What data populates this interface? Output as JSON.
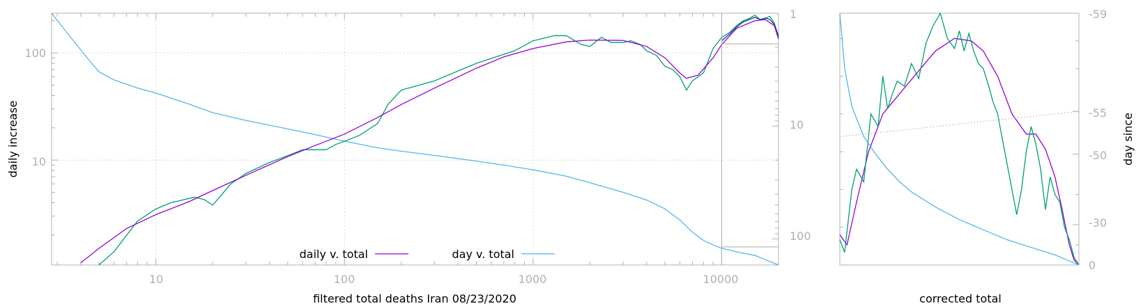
{
  "chart_data": [
    {
      "type": "line",
      "xscale": "log",
      "yscale": "log",
      "xlim": [
        2.8,
        20000
      ],
      "ylim": [
        1.05,
        235
      ],
      "y2lim": [
        1,
        170
      ],
      "y2_reversed": true,
      "grid": true,
      "xlabel": "filtered total deaths Iran 08/23/2020",
      "ylabel": "daily increase",
      "y2label": "",
      "x_ticks": [
        "10",
        "100",
        "1000",
        "10000"
      ],
      "y_ticks": [
        "100",
        "10"
      ],
      "y2_ticks": [
        "1",
        "10",
        "100"
      ],
      "legend_position": "bottom-center",
      "legend": [
        "daily v. total",
        "day v. total"
      ],
      "colors": {
        "daily_fit": "#9400d3",
        "daily_raw": "#009e73",
        "day": "#56b4e9",
        "inset": "#1f3c88",
        "frame": "#b0b0b0"
      },
      "series": [
        {
          "name": "daily v. total",
          "axis": "left",
          "x": [
            4,
            5,
            7,
            10,
            15,
            20,
            30,
            50,
            70,
            100,
            150,
            200,
            300,
            500,
            700,
            1000,
            1500,
            2000,
            3000,
            4000,
            5000,
            6000,
            6500,
            7500,
            9000,
            10000,
            12000,
            15000,
            17000,
            19000,
            20000
          ],
          "y": [
            1.1,
            1.5,
            2.3,
            3.1,
            4.1,
            5.2,
            7.2,
            10.8,
            13.7,
            17.5,
            25,
            33,
            47,
            72,
            92,
            110,
            127,
            132,
            131,
            115,
            90,
            65,
            58,
            62,
            90,
            120,
            170,
            200,
            205,
            180,
            135
          ]
        },
        {
          "name": "",
          "axis": "left",
          "x": [
            5,
            6,
            8,
            10,
            12,
            16,
            18,
            20,
            25,
            30,
            40,
            50,
            60,
            70,
            80,
            90,
            100,
            120,
            150,
            170,
            200,
            300,
            500,
            800,
            1000,
            1300,
            1500,
            1800,
            2000,
            2300,
            2600,
            3000,
            3300,
            3700,
            4000,
            4500,
            5000,
            5500,
            6000,
            6500,
            7000,
            7500,
            8000,
            9000,
            10000,
            11000,
            12000,
            13000,
            14000,
            15000,
            16000,
            17000,
            18000,
            19000,
            20000
          ],
          "y": [
            1.05,
            1.4,
            2.7,
            3.5,
            4.0,
            4.5,
            4.3,
            3.8,
            6.0,
            7.5,
            9.5,
            11,
            12.5,
            12.5,
            12.5,
            14,
            15,
            17,
            22,
            33,
            45,
            55,
            80,
            105,
            130,
            145,
            145,
            120,
            115,
            140,
            125,
            125,
            130,
            120,
            105,
            95,
            75,
            70,
            60,
            45,
            55,
            60,
            65,
            110,
            140,
            155,
            180,
            200,
            210,
            225,
            205,
            210,
            220,
            190,
            140
          ]
        },
        {
          "name": "day v. total",
          "axis": "right",
          "x": [
            2.8,
            3.5,
            4.5,
            5,
            6,
            8,
            10,
            15,
            20,
            30,
            50,
            70,
            100,
            150,
            200,
            300,
            500,
            700,
            1000,
            1500,
            2000,
            3000,
            4000,
            5000,
            6000,
            7000,
            8000,
            9000,
            10000,
            12000,
            15000,
            20000
          ],
          "y": [
            1,
            1.6,
            2.7,
            3.3,
            3.9,
            4.6,
            5.1,
            6.4,
            7.6,
            8.9,
            10.6,
            11.9,
            13.6,
            15.6,
            16.7,
            18.2,
            20.4,
            22.2,
            24.4,
            27.8,
            31.8,
            38.6,
            45.2,
            54.1,
            68,
            87,
            103,
            113,
            121,
            130,
            140,
            170
          ]
        }
      ],
      "inset": {
        "x": [
          10000,
          11000,
          12000,
          13000,
          14000,
          15000,
          16000,
          17000,
          18000,
          19000,
          20000
        ],
        "y": [
          130,
          150,
          175,
          195,
          205,
          215,
          205,
          212,
          205,
          185,
          145
        ]
      }
    },
    {
      "type": "line",
      "xlabel": "corrected total",
      "y2label": "day since",
      "y2_ticks": [
        "-59",
        "-55",
        "-50",
        "-30",
        "0"
      ],
      "series": [
        {
          "name": "",
          "x": [
            0,
            0.03,
            0.07,
            0.12,
            0.18,
            0.25,
            0.32,
            0.4,
            0.48,
            0.55,
            0.6,
            0.66,
            0.72,
            0.78,
            0.82,
            0.86,
            0.9,
            0.93,
            0.96,
            0.98,
            1.0
          ],
          "y": [
            0.12,
            0.08,
            0.25,
            0.45,
            0.6,
            0.68,
            0.76,
            0.85,
            0.9,
            0.89,
            0.85,
            0.75,
            0.6,
            0.52,
            0.52,
            0.46,
            0.35,
            0.22,
            0.08,
            0.02,
            0.0
          ]
        },
        {
          "name": "",
          "x": [
            0,
            0.02,
            0.05,
            0.07,
            0.1,
            0.13,
            0.16,
            0.18,
            0.2,
            0.22,
            0.24,
            0.27,
            0.3,
            0.33,
            0.36,
            0.39,
            0.42,
            0.45,
            0.48,
            0.5,
            0.52,
            0.54,
            0.56,
            0.58,
            0.6,
            0.62,
            0.64,
            0.66,
            0.68,
            0.7,
            0.72,
            0.74,
            0.76,
            0.78,
            0.8,
            0.82,
            0.84,
            0.86,
            0.88,
            0.9,
            0.92,
            0.94,
            0.96,
            0.98,
            1.0
          ],
          "y": [
            0.1,
            0.05,
            0.3,
            0.38,
            0.33,
            0.6,
            0.55,
            0.75,
            0.62,
            0.68,
            0.73,
            0.71,
            0.8,
            0.74,
            0.88,
            0.95,
            1.0,
            0.9,
            0.86,
            0.93,
            0.85,
            0.92,
            0.85,
            0.8,
            0.78,
            0.72,
            0.65,
            0.6,
            0.5,
            0.4,
            0.3,
            0.2,
            0.3,
            0.45,
            0.55,
            0.48,
            0.38,
            0.22,
            0.35,
            0.28,
            0.25,
            0.15,
            0.1,
            0.03,
            0.0
          ]
        },
        {
          "name": "",
          "x": [
            0,
            0.02,
            0.05,
            0.1,
            0.15,
            0.2,
            0.25,
            0.3,
            0.4,
            0.5,
            0.6,
            0.7,
            0.8,
            0.9,
            0.95,
            1.0
          ],
          "y": [
            1.0,
            0.78,
            0.63,
            0.51,
            0.44,
            0.38,
            0.33,
            0.29,
            0.23,
            0.18,
            0.14,
            0.1,
            0.07,
            0.04,
            0.02,
            0.0
          ]
        },
        {
          "name": "",
          "dashed": true,
          "x": [
            0,
            1
          ],
          "y": [
            0.51,
            0.61
          ]
        }
      ]
    }
  ]
}
